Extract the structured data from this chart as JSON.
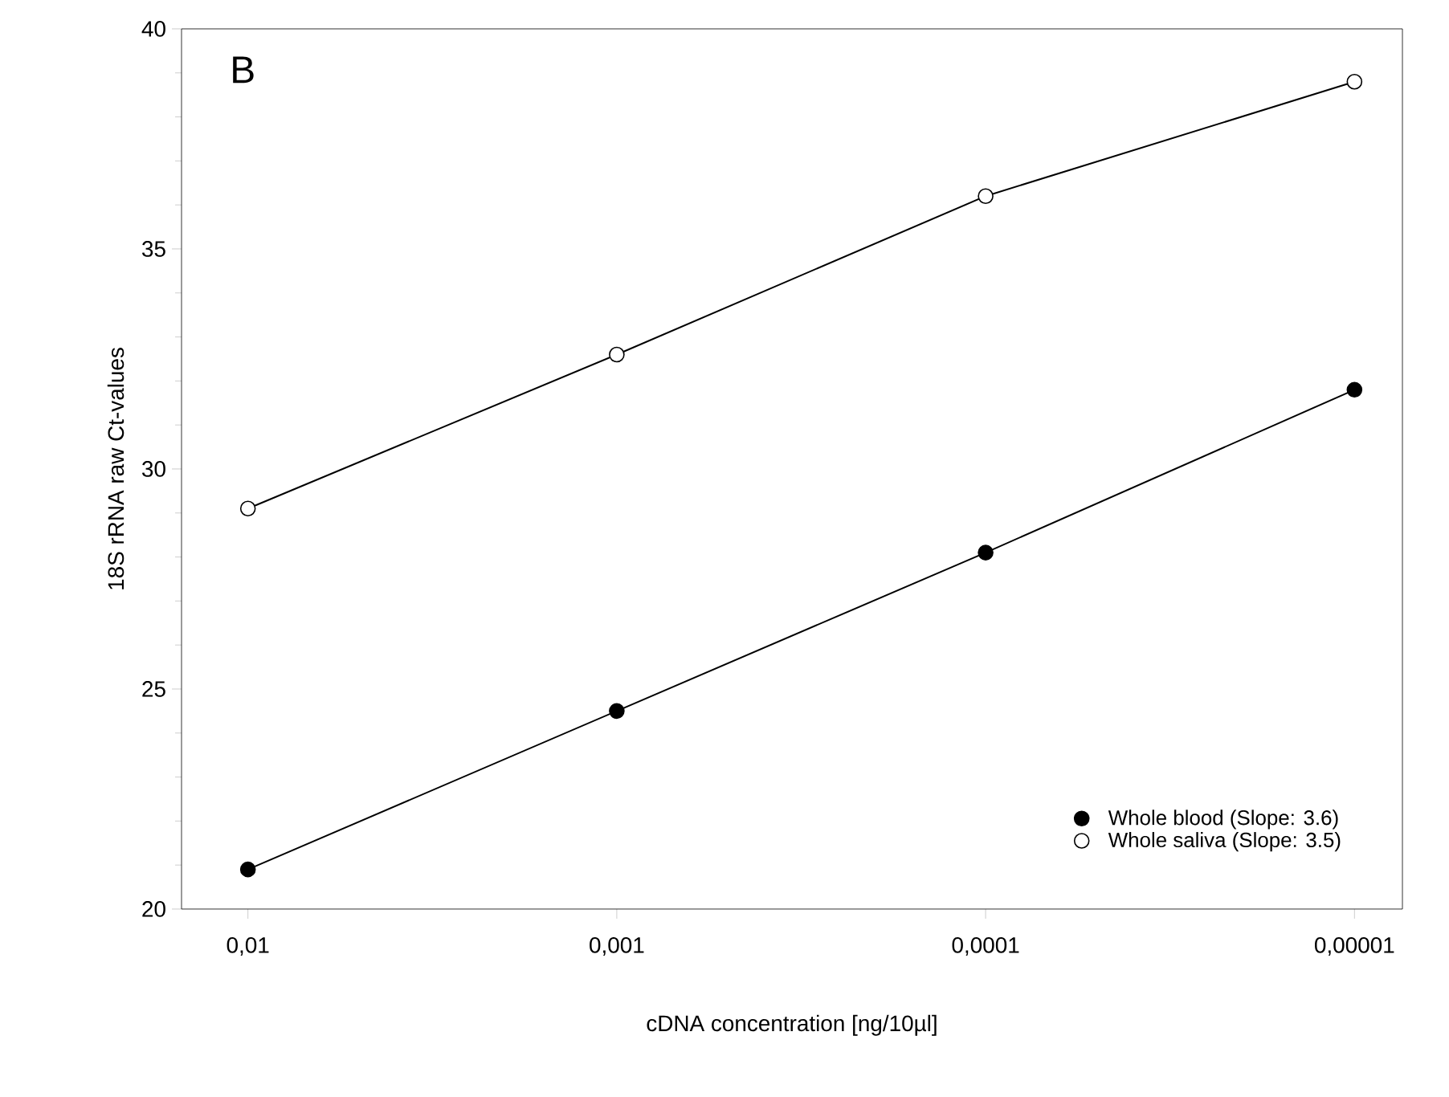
{
  "chart_data": {
    "type": "line",
    "xlabel": "cDNA concentration [ng/10µl]",
    "ylabel": "18S rRNA raw Ct-values",
    "categories": [
      "0,01",
      "0,001",
      "0,0001",
      "0,00001"
    ],
    "series": [
      {
        "name": "Whole blood (Slope: 3.6)",
        "color": "#000000",
        "values": [
          20.9,
          24.5,
          28.1,
          31.8
        ]
      },
      {
        "name": "Whole saliva (Slope: 3.5)",
        "color": "#ffffff",
        "values": [
          29.1,
          32.6,
          36.2,
          38.8
        ]
      }
    ],
    "ylim": [
      20,
      40
    ],
    "yticks": [
      20,
      25,
      30,
      35,
      40
    ],
    "marker": "circle",
    "line_style": "solid",
    "legend": "bottom right",
    "grid": false,
    "annotations": [
      "B"
    ]
  }
}
